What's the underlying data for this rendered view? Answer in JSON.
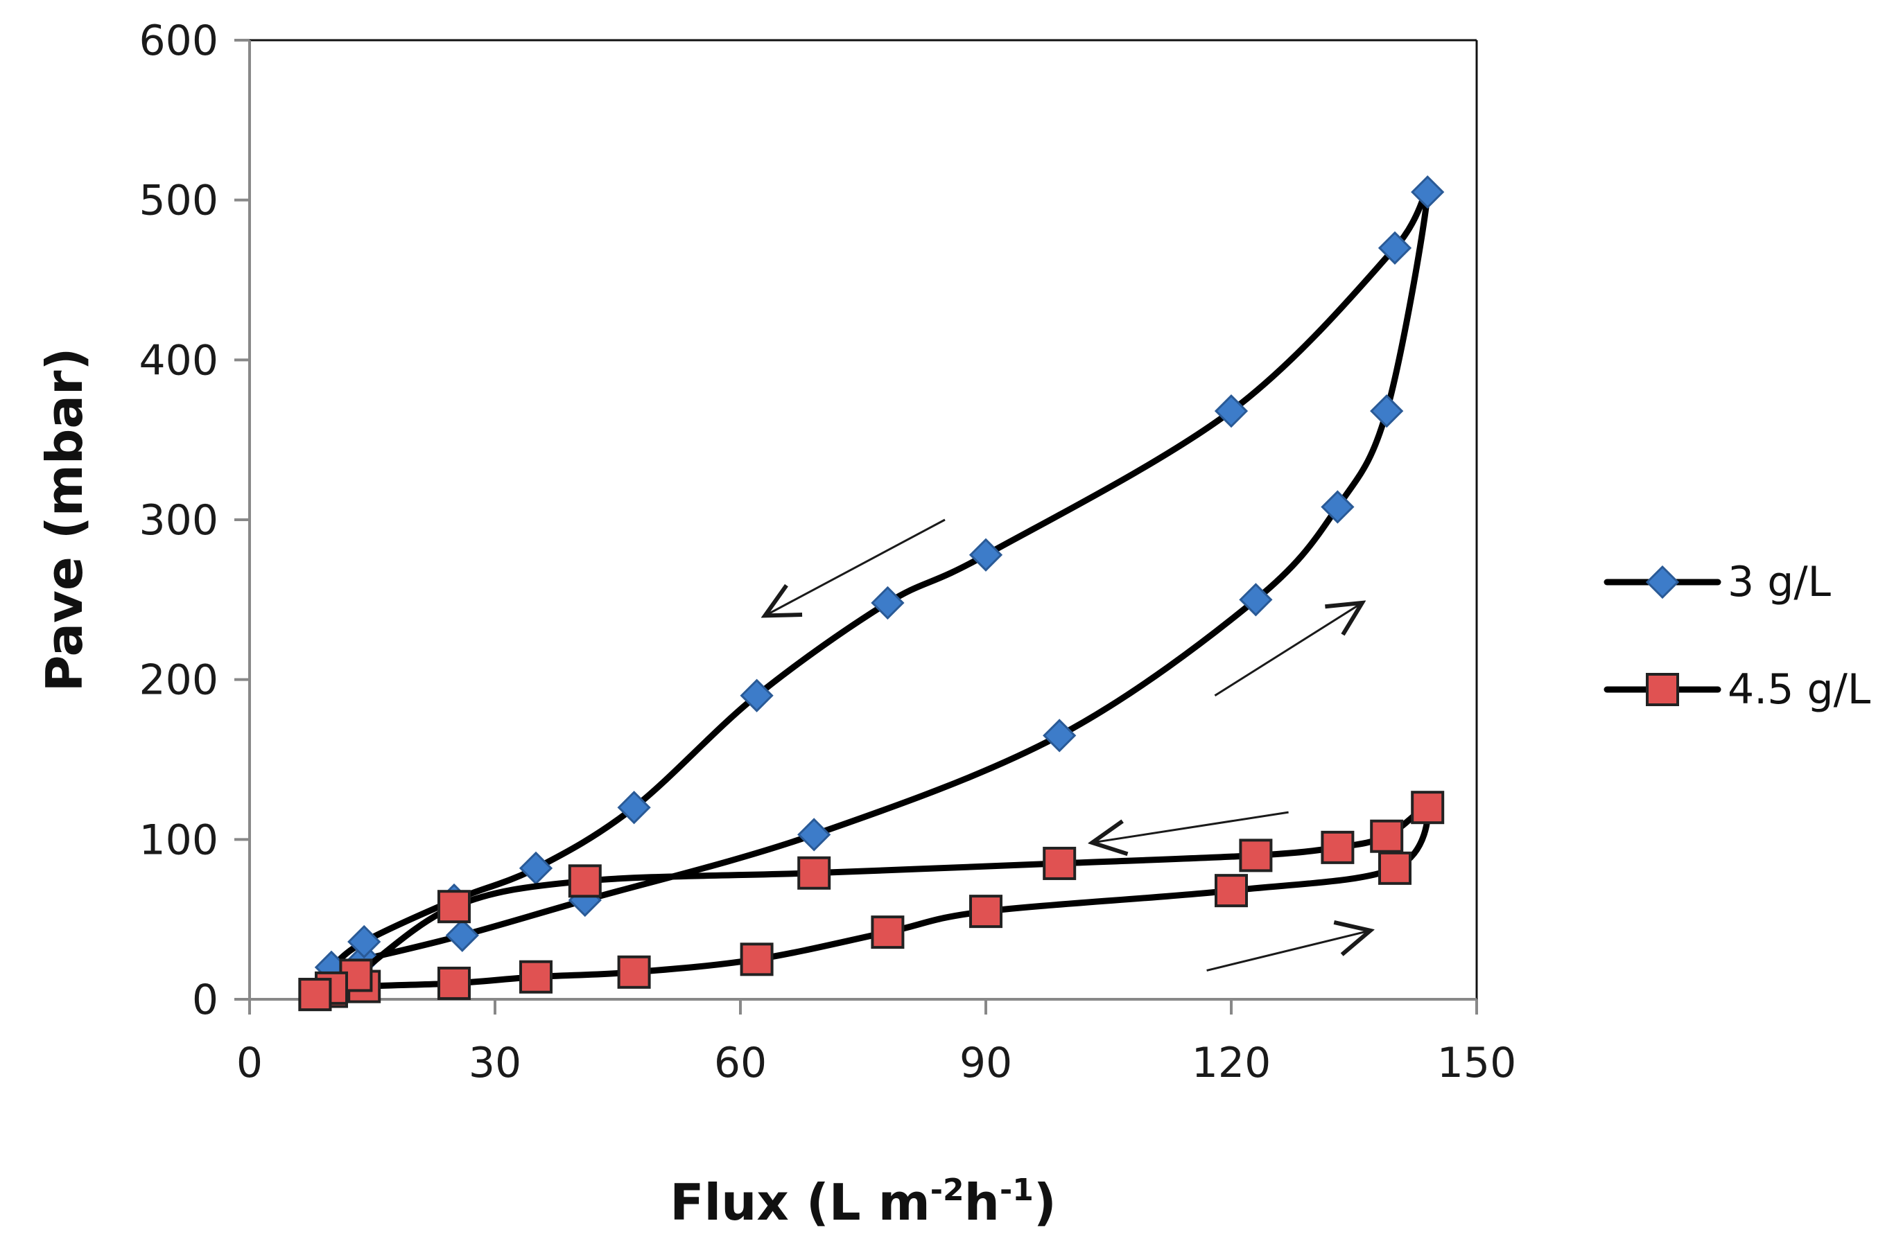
{
  "chart_data": {
    "type": "line",
    "title": "",
    "xlabel": "Flux (L m-2h-1)",
    "xlabel_parts": {
      "main": "Flux (L m",
      "sup1": "-2",
      "mid": "h",
      "sup2": "-1",
      "end": ")"
    },
    "ylabel": "Pave (mbar)",
    "xlim": [
      0,
      150
    ],
    "ylim": [
      0,
      600
    ],
    "xticks": [
      "0",
      "30",
      "60",
      "90",
      "120",
      "150"
    ],
    "yticks": [
      "0",
      "100",
      "200",
      "300",
      "400",
      "500",
      "600"
    ],
    "grid": false,
    "legend_position": "right",
    "series": [
      {
        "name": "3 g/L",
        "marker": "diamond",
        "color": "#3d7cc9",
        "x": [
          10,
          14,
          26,
          41,
          69,
          99,
          123,
          133,
          139,
          144,
          140,
          120,
          90,
          78,
          62,
          47,
          35,
          25,
          14,
          10
        ],
        "y": [
          20,
          25,
          40,
          62,
          103,
          165,
          250,
          308,
          368,
          505,
          470,
          368,
          278,
          248,
          190,
          120,
          82,
          62,
          36,
          20
        ]
      },
      {
        "name": "4.5 g/L",
        "marker": "square",
        "color": "#e05252",
        "x": [
          8,
          10,
          14,
          25,
          35,
          47,
          62,
          78,
          90,
          120,
          140,
          144,
          139,
          133,
          123,
          99,
          69,
          41,
          25,
          13,
          10,
          8
        ],
        "y": [
          3,
          5,
          8,
          10,
          14,
          17,
          25,
          42,
          55,
          68,
          82,
          120,
          102,
          95,
          90,
          85,
          79,
          74,
          58,
          15,
          7,
          3
        ]
      }
    ],
    "annotations": [
      {
        "type": "arrow",
        "from": [
          85,
          300
        ],
        "to": [
          63,
          240
        ]
      },
      {
        "type": "arrow",
        "from": [
          118,
          190
        ],
        "to": [
          136,
          248
        ]
      },
      {
        "type": "arrow",
        "from": [
          127,
          117
        ],
        "to": [
          103,
          98
        ]
      },
      {
        "type": "arrow",
        "from": [
          117,
          18
        ],
        "to": [
          137,
          43
        ]
      }
    ]
  }
}
